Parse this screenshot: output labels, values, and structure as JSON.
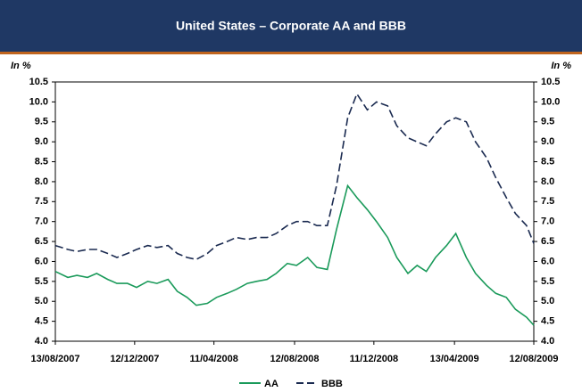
{
  "chart_data": {
    "type": "line",
    "title": "United States – Corporate AA and BBB",
    "y_label": "In %",
    "y2_label": "In %",
    "x": [
      "13/08/2007",
      "01/09/2007",
      "15/09/2007",
      "01/10/2007",
      "15/10/2007",
      "01/11/2007",
      "15/11/2007",
      "01/12/2007",
      "15/12/2007",
      "01/01/2008",
      "15/01/2008",
      "01/02/2008",
      "15/02/2008",
      "01/03/2008",
      "15/03/2008",
      "01/04/2008",
      "15/04/2008",
      "01/05/2008",
      "15/05/2008",
      "01/06/2008",
      "15/06/2008",
      "01/07/2008",
      "15/07/2008",
      "01/08/2008",
      "15/08/2008",
      "01/09/2008",
      "15/09/2008",
      "01/10/2008",
      "15/10/2008",
      "01/11/2008",
      "15/11/2008",
      "01/12/2008",
      "15/12/2008",
      "01/01/2009",
      "15/01/2009",
      "01/02/2009",
      "15/02/2009",
      "01/03/2009",
      "15/03/2009",
      "01/04/2009",
      "15/04/2009",
      "01/05/2009",
      "15/05/2009",
      "01/06/2009",
      "15/06/2009",
      "01/07/2009",
      "15/07/2009",
      "01/08/2009",
      "12/08/2009"
    ],
    "series": [
      {
        "name": "AA",
        "color": "#1a9a5a",
        "dash": false,
        "values": [
          5.75,
          5.6,
          5.65,
          5.6,
          5.7,
          5.55,
          5.45,
          5.45,
          5.35,
          5.5,
          5.45,
          5.55,
          5.25,
          5.1,
          4.9,
          4.95,
          5.1,
          5.2,
          5.3,
          5.45,
          5.5,
          5.55,
          5.7,
          5.95,
          5.9,
          6.1,
          5.85,
          5.8,
          6.8,
          7.9,
          7.6,
          7.3,
          7.0,
          6.6,
          6.1,
          5.7,
          5.9,
          5.75,
          6.1,
          6.4,
          6.7,
          6.1,
          5.7,
          5.4,
          5.2,
          5.1,
          4.8,
          4.6,
          4.4
        ]
      },
      {
        "name": "BBB",
        "color": "#1a2a50",
        "dash": true,
        "values": [
          6.4,
          6.3,
          6.25,
          6.3,
          6.3,
          6.2,
          6.1,
          6.2,
          6.3,
          6.4,
          6.35,
          6.4,
          6.2,
          6.1,
          6.05,
          6.2,
          6.4,
          6.5,
          6.6,
          6.55,
          6.6,
          6.6,
          6.7,
          6.9,
          7.0,
          7.0,
          6.9,
          6.9,
          7.9,
          9.6,
          10.2,
          9.8,
          10.0,
          9.9,
          9.4,
          9.1,
          9.0,
          8.9,
          9.2,
          9.5,
          9.6,
          9.5,
          9.0,
          8.6,
          8.1,
          7.6,
          7.2,
          6.9,
          6.45
        ]
      }
    ],
    "xlim": [
      "13/08/2007",
      "12/08/2009"
    ],
    "xticks": [
      "13/08/2007",
      "12/12/2007",
      "11/04/2008",
      "12/08/2008",
      "11/12/2008",
      "13/04/2009",
      "12/08/2009"
    ],
    "ylim": [
      4,
      10.5
    ],
    "yticks": [
      {
        "value": 4,
        "label": "4.0"
      },
      4.5,
      {
        "value": 5,
        "label": "5.0"
      },
      5.5,
      {
        "value": 6,
        "label": "6.0"
      },
      6.5,
      {
        "value": 7,
        "label": "7.0"
      },
      7.5,
      {
        "value": 8,
        "label": "8.0"
      },
      8.5,
      {
        "value": 9,
        "label": "9.0"
      },
      9.5,
      {
        "value": 10,
        "label": "10.0"
      },
      10.5
    ],
    "y2lim": [
      4,
      10.5
    ],
    "y2ticks": [
      {
        "value": 4,
        "label": "4.0"
      },
      4.5,
      {
        "value": 5,
        "label": "5.0"
      },
      5.5,
      {
        "value": 6,
        "label": "6.0"
      },
      6.5,
      {
        "value": 7,
        "label": "7.0"
      },
      7.5,
      {
        "value": 8,
        "label": "8.0"
      },
      8.5,
      {
        "value": 9,
        "label": "9.0"
      },
      9.5,
      {
        "value": 10,
        "label": "10.0"
      },
      10.5
    ],
    "grid": false,
    "legend": "bottom"
  }
}
